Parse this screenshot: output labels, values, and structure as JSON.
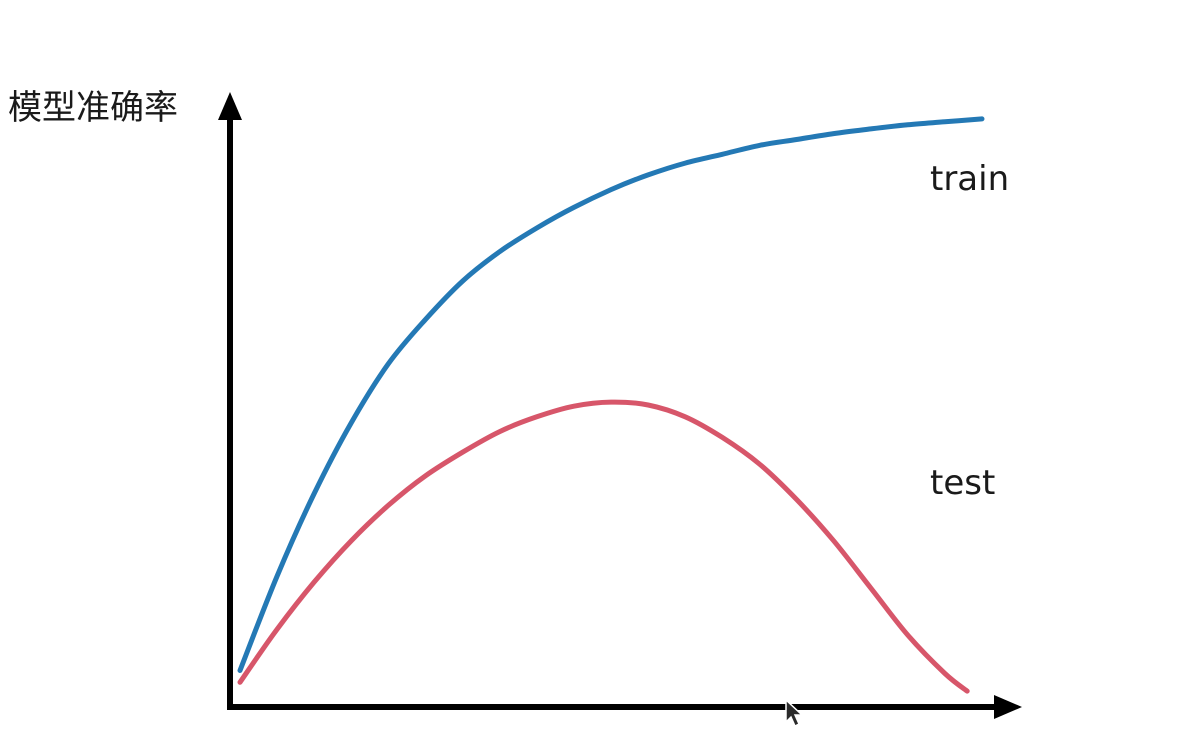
{
  "chart_data": {
    "type": "line",
    "title": "",
    "xlabel": "",
    "ylabel": "模型准确率",
    "xlim": [
      0,
      100
    ],
    "ylim": [
      0,
      100
    ],
    "grid": false,
    "legend": "inline-labels",
    "series": [
      {
        "name": "train",
        "color": "#2479b5",
        "x": [
          0,
          5,
          10,
          15,
          20,
          25,
          30,
          35,
          40,
          45,
          50,
          55,
          60,
          65,
          70,
          75,
          80,
          85,
          90,
          95,
          100
        ],
        "y": [
          5,
          21,
          35,
          47,
          57,
          64.5,
          71,
          76,
          80,
          83.5,
          86.5,
          89,
          91,
          92.5,
          94,
          95,
          96,
          96.8,
          97.5,
          98,
          98.5
        ]
      },
      {
        "name": "test",
        "color": "#d7566a",
        "x": [
          0,
          5,
          10,
          15,
          20,
          25,
          30,
          35,
          40,
          45,
          50,
          55,
          60,
          65,
          70,
          75,
          80,
          85,
          90,
          95,
          98
        ],
        "y": [
          3,
          12,
          20,
          27,
          33,
          38,
          42,
          45.5,
          48,
          49.8,
          50.5,
          50,
          48,
          44.5,
          40,
          34,
          27,
          19,
          11,
          4.5,
          1.5
        ]
      }
    ]
  }
}
